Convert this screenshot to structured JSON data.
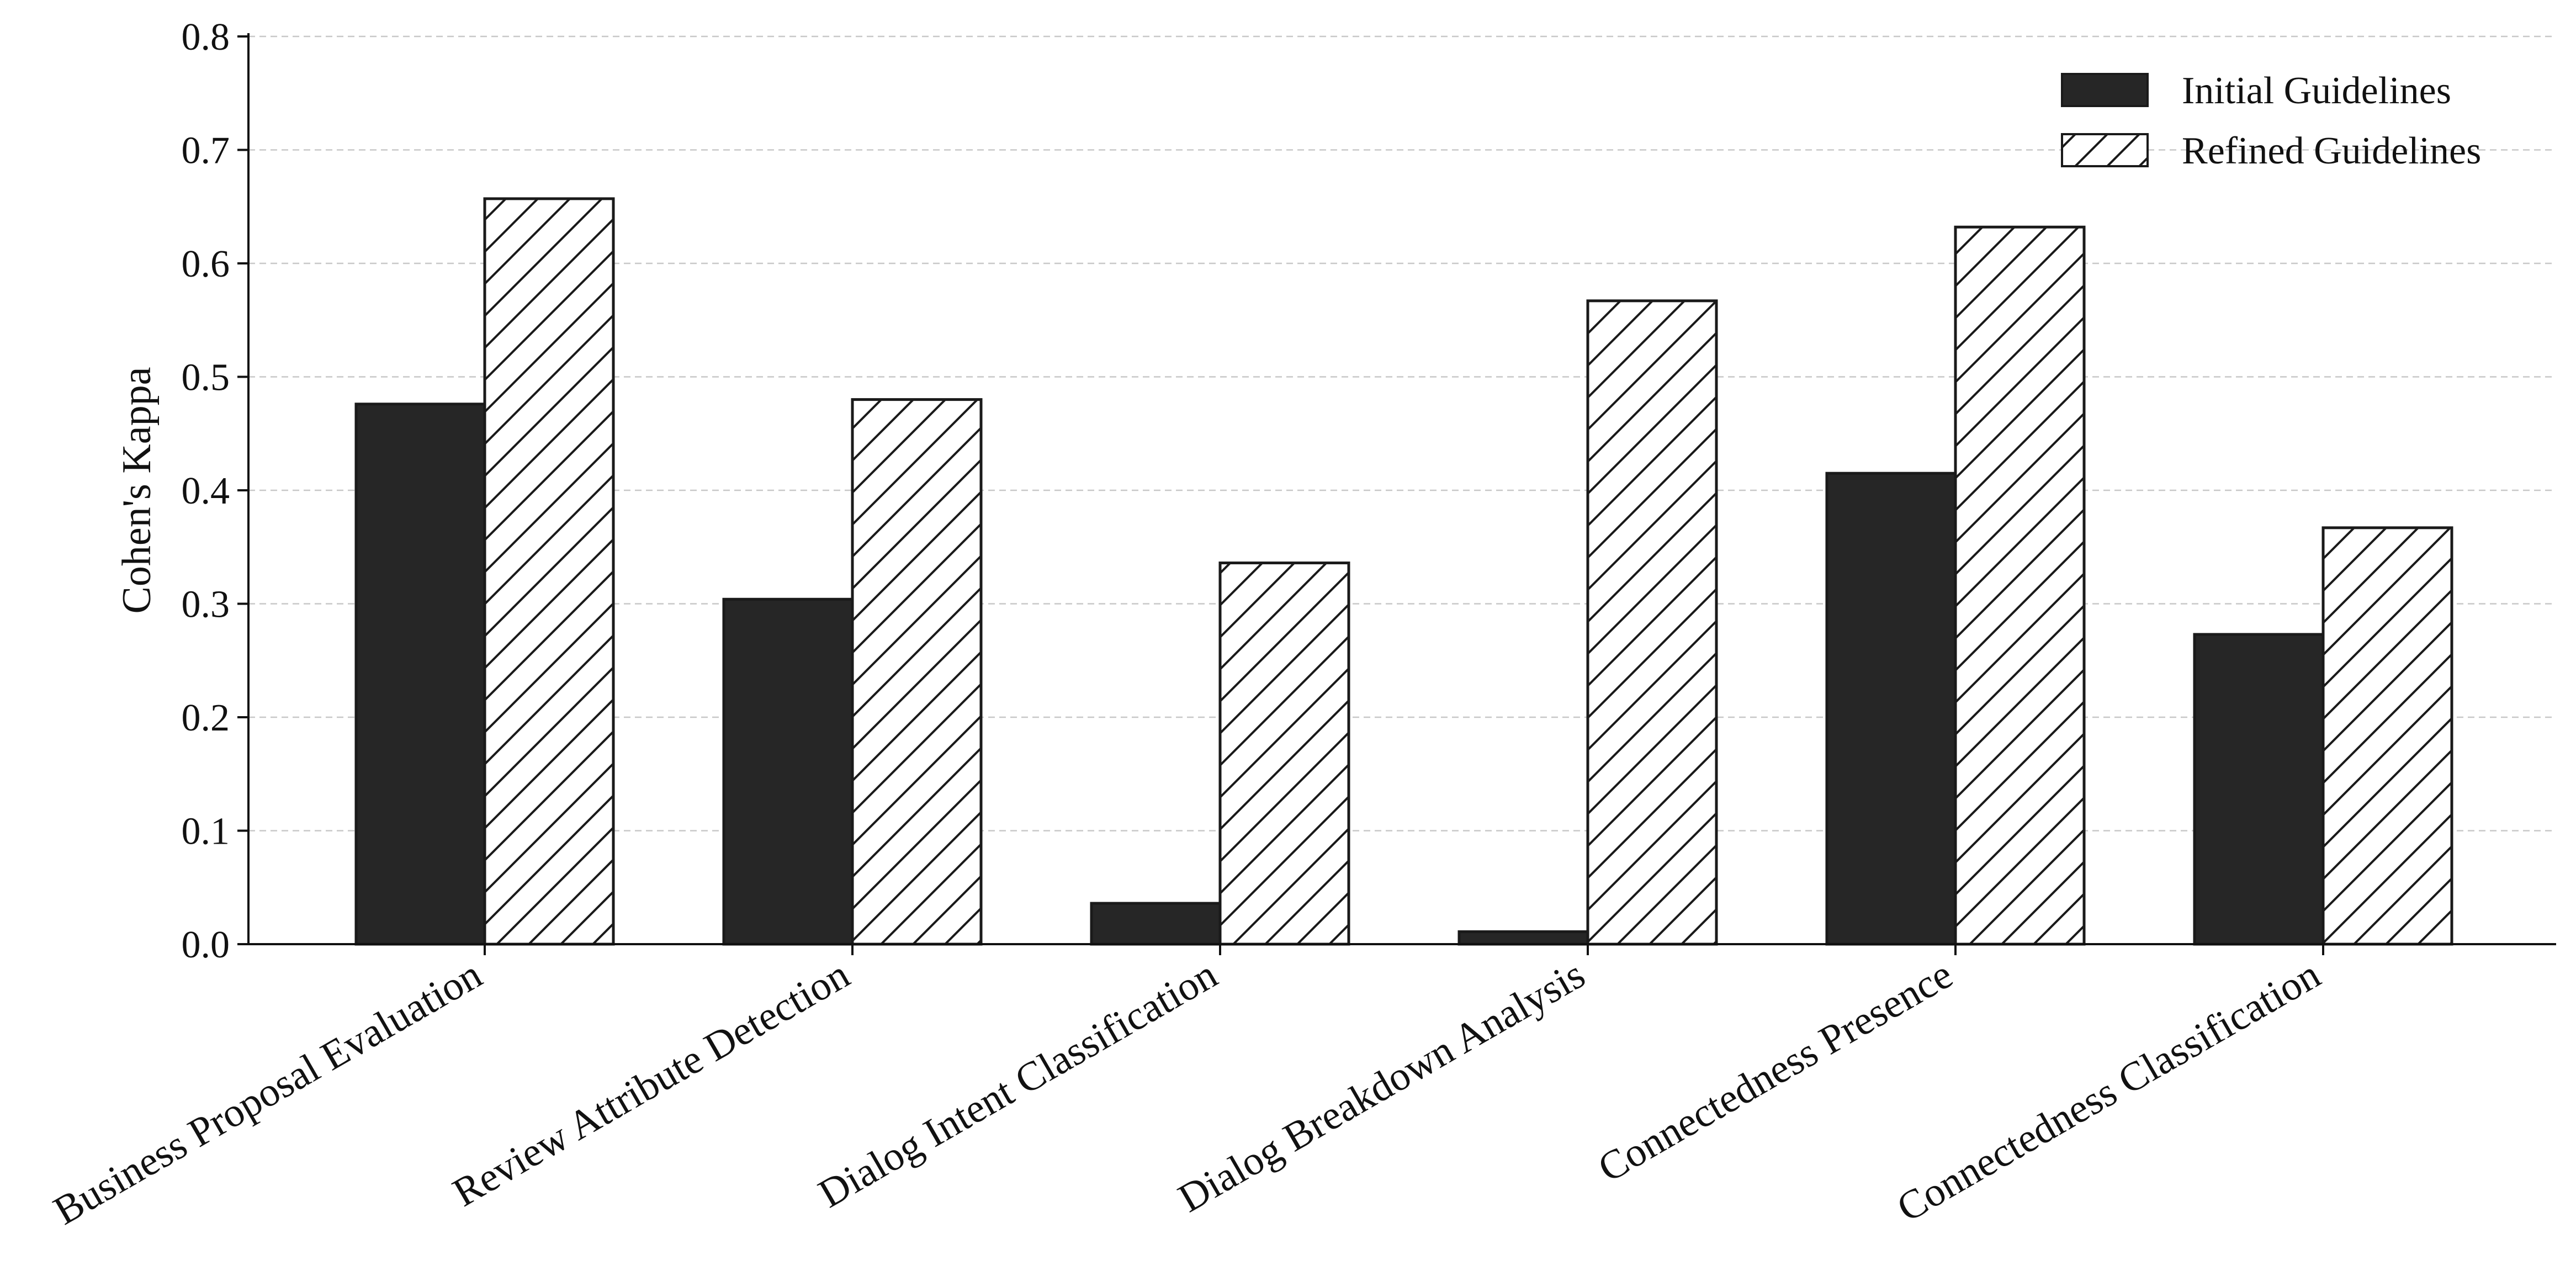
{
  "chart_data": {
    "type": "bar",
    "title": "",
    "xlabel": "",
    "ylabel": "Cohen's Kappa",
    "ylim": [
      0,
      0.8
    ],
    "yticks": [
      "0.0",
      "0.1",
      "0.2",
      "0.3",
      "0.4",
      "0.5",
      "0.6",
      "0.7",
      "0.8"
    ],
    "grid": "horizontal dashed",
    "legend_position": "top-right",
    "categories": [
      "Business Proposal Evaluation",
      "Review Attribute Detection",
      "Dialog Intent Classification",
      "Dialog Breakdown Analysis",
      "Connectedness Presence",
      "Connectedness Classification"
    ],
    "series": [
      {
        "name": "Initial Guidelines",
        "fill": "solid",
        "color": "#262626",
        "values": [
          0.476,
          0.304,
          0.036,
          0.011,
          0.415,
          0.273
        ]
      },
      {
        "name": "Refined Guidelines",
        "fill": "hatched",
        "color": "#ffffff",
        "values": [
          0.657,
          0.48,
          0.336,
          0.567,
          0.632,
          0.367
        ]
      }
    ]
  }
}
